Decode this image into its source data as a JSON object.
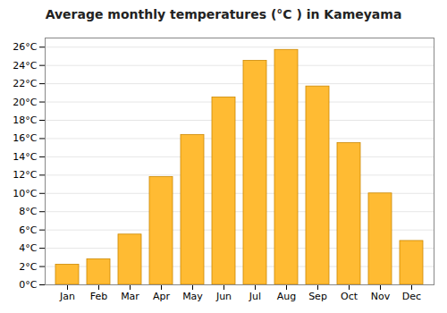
{
  "chart_data": {
    "type": "bar",
    "title": "Average monthly temperatures (°C ) in Kameyama",
    "categories": [
      "Jan",
      "Feb",
      "Mar",
      "Apr",
      "May",
      "Jun",
      "Jul",
      "Aug",
      "Sep",
      "Oct",
      "Nov",
      "Dec"
    ],
    "values": [
      2.2,
      2.8,
      5.5,
      11.8,
      16.4,
      20.5,
      24.5,
      25.7,
      21.7,
      15.5,
      10.0,
      4.8
    ],
    "color": "#FFBB33",
    "ylim": [
      0,
      27
    ],
    "yticks": [
      {
        "value": 0,
        "label": "0°C"
      },
      {
        "value": 2,
        "label": "2°C"
      },
      {
        "value": 4,
        "label": "4°C"
      },
      {
        "value": 6,
        "label": "6°C"
      },
      {
        "value": 8,
        "label": "8°C"
      },
      {
        "value": 10,
        "label": "10°C"
      },
      {
        "value": 12,
        "label": "12°C"
      },
      {
        "value": 14,
        "label": "14°C"
      },
      {
        "value": 16,
        "label": "16°C"
      },
      {
        "value": 18,
        "label": "18°C"
      },
      {
        "value": 20,
        "label": "20°C"
      },
      {
        "value": 22,
        "label": "22°C"
      },
      {
        "value": 24,
        "label": "24°C"
      },
      {
        "value": 26,
        "label": "26°C"
      }
    ],
    "grid": true
  }
}
